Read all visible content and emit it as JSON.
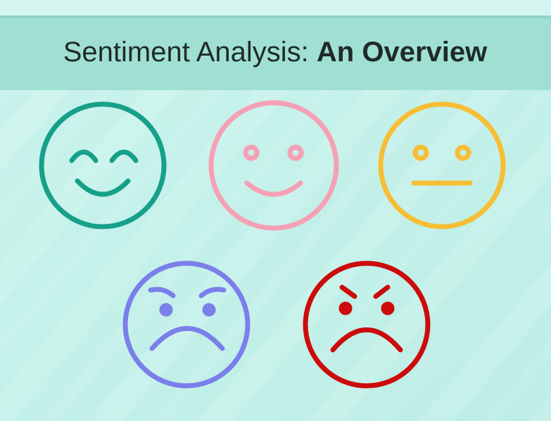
{
  "header": {
    "title": "Sentiment Analysis:",
    "emphasis": "An Overview"
  }
}
